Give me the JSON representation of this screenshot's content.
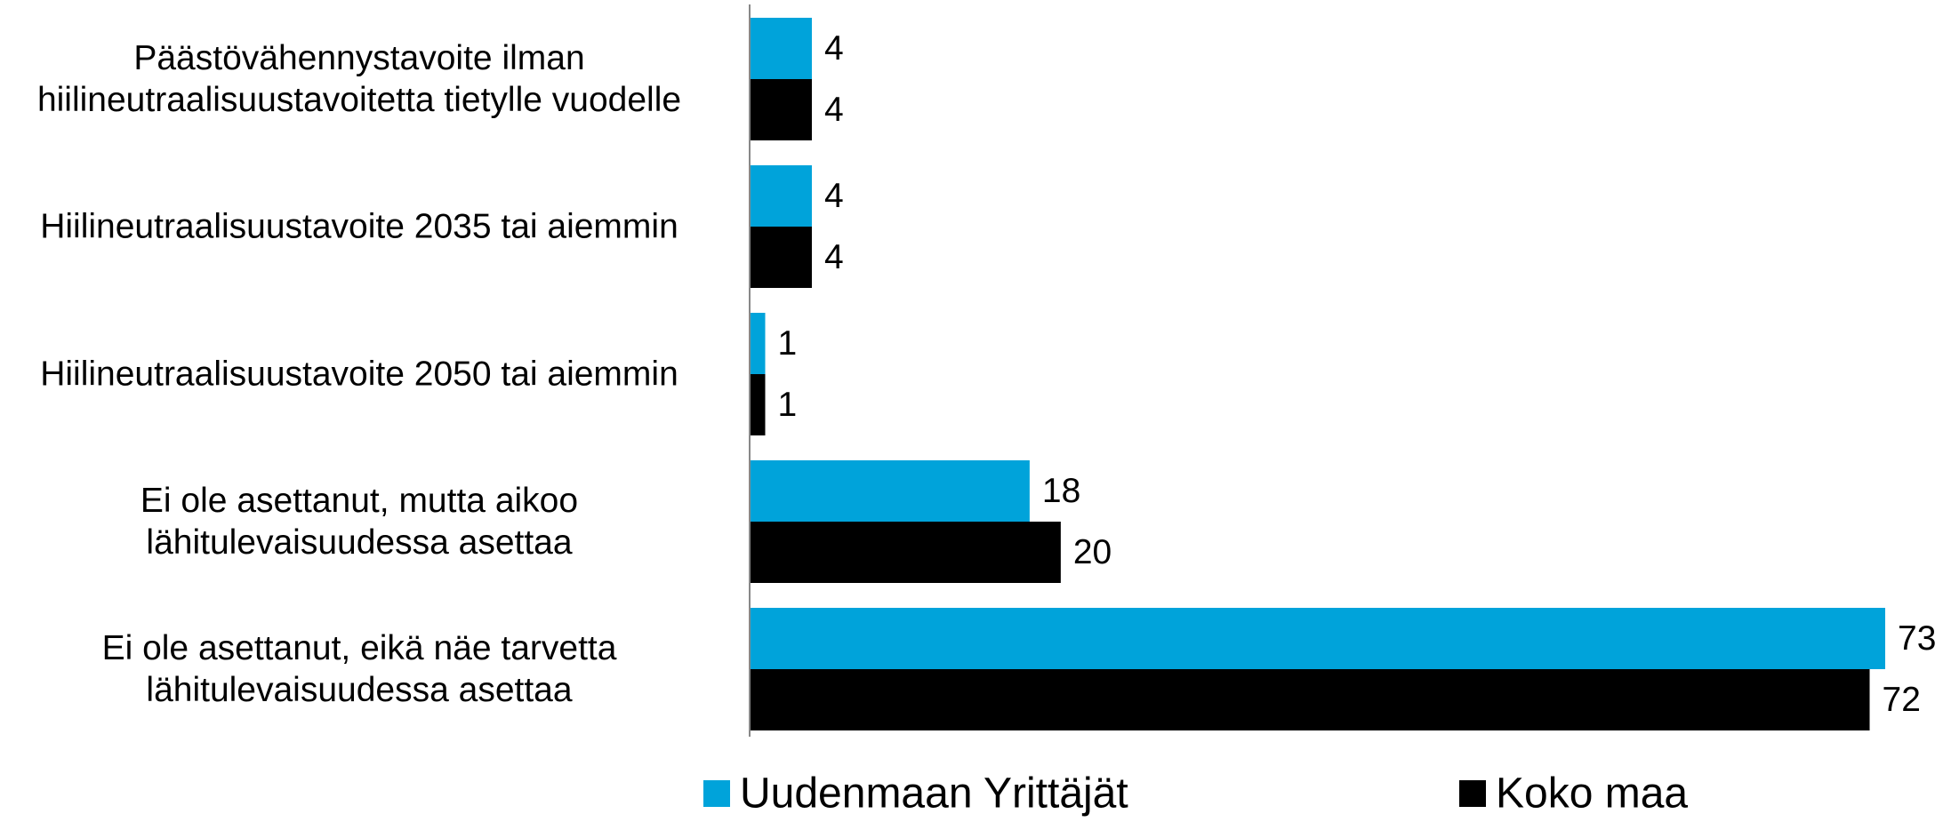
{
  "chart_data": {
    "type": "barh",
    "categories": [
      "Päästövähennystavoite ilman\nhiilineutraalisuustavoitetta tietylle vuodelle",
      "Hiilineutraalisuustavoite 2035 tai aiemmin",
      "Hiilineutraalisuustavoite 2050 tai aiemmin",
      "Ei ole asettanut, mutta aikoo\nlähitulevaisuudessa asettaa",
      "Ei ole asettanut, eikä näe tarvetta\nlähitulevaisuudessa asettaa"
    ],
    "series": [
      {
        "name": "Uudenmaan Yrittäjät",
        "color": "#00a3da",
        "values": [
          4,
          4,
          1,
          18,
          73
        ]
      },
      {
        "name": "Koko maa",
        "color": "#000000",
        "values": [
          4,
          4,
          1,
          20,
          72
        ]
      }
    ],
    "xlim": [
      0,
      75
    ]
  }
}
